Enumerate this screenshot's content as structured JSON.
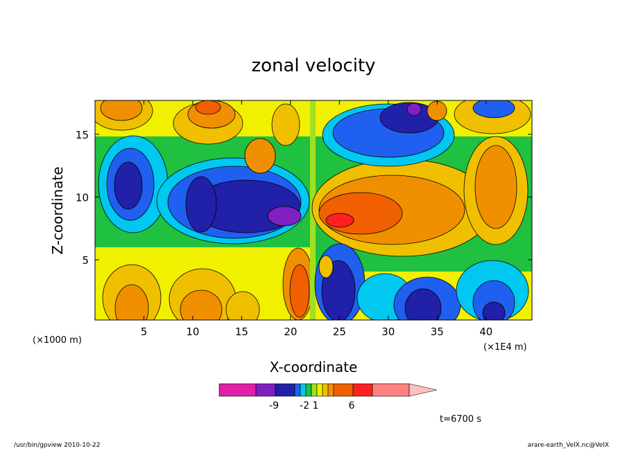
{
  "chart_data": {
    "type": "heatmap",
    "title": "zonal velocity",
    "xlabel": "X-coordinate",
    "ylabel": "Z-coordinate",
    "x_unit_left": "(×1000 m)",
    "x_unit_right": "(×1E4 m)",
    "xlim": [
      0.0,
      44.7
    ],
    "ylim": [
      0.2,
      17.7
    ],
    "x_ticks": [
      5,
      10,
      15,
      20,
      25,
      30,
      35,
      40
    ],
    "y_ticks": [
      5,
      10,
      15
    ],
    "grid": false,
    "legend": "colorbar-bottom-center",
    "colorbar": {
      "tick_labels": [
        "-9",
        "-2",
        "1",
        "6"
      ],
      "tick_values": [
        -9,
        -2,
        1,
        6
      ],
      "colors": [
        "#e020a8",
        "#8020c0",
        "#2020a8",
        "#2060f0",
        "#00c8f0",
        "#20c040",
        "#a0e020",
        "#f0f000",
        "#f0c000",
        "#f09000",
        "#f06000",
        "#ff2020",
        "#ff8080",
        "#ffc0c0"
      ]
    },
    "time_label": "t=6700 s"
  },
  "footer": {
    "left": "/usr/bin/gpview   2010-10-22",
    "right": "arare-earth_VelX.nc@VelX"
  }
}
